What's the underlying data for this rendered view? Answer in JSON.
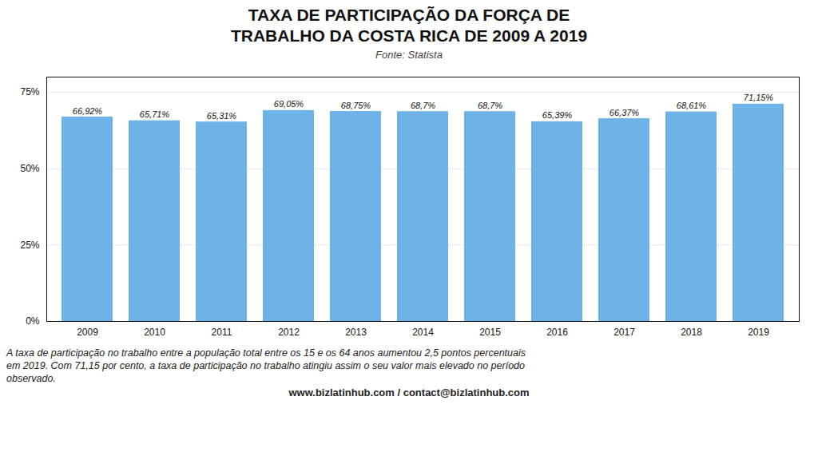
{
  "chart_data": {
    "type": "bar",
    "title": "TAXA DE PARTICIPAÇÃO DA FORÇA DE\nTRABALHO DA COSTA RICA DE 2009 A 2019",
    "subtitle": "Fonte: Statista",
    "categories": [
      "2009",
      "2010",
      "2011",
      "2012",
      "2013",
      "2014",
      "2015",
      "2016",
      "2017",
      "2018",
      "2019"
    ],
    "values": [
      66.92,
      65.71,
      65.31,
      69.05,
      68.75,
      68.7,
      68.7,
      65.39,
      66.37,
      68.61,
      71.15
    ],
    "value_labels": [
      "66,92%",
      "65,71%",
      "65,31%",
      "69,05%",
      "68,75%",
      "68,7%",
      "68,7%",
      "65,39%",
      "66,37%",
      "68,61%",
      "71,15%"
    ],
    "data_labels": true,
    "color": "#6DB3E8",
    "ylim": [
      0,
      80
    ],
    "yticks": [
      {
        "value": 0,
        "label": "0%"
      },
      {
        "value": 25,
        "label": "25%"
      },
      {
        "value": 50,
        "label": "50%"
      },
      {
        "value": 75,
        "label": "75%"
      }
    ],
    "grid": true,
    "annotations": [
      "A taxa de participação no trabalho entre a população total entre os 15 e os 64 anos aumentou 2,5 pontos percentuais\nem 2019. Com 71,15 por cento, a taxa de participação no trabalho atingiu assim o seu valor mais elevado no período\nobservado.",
      "www.bizlatinhub.com / contact@bizlatinhub.com"
    ]
  }
}
